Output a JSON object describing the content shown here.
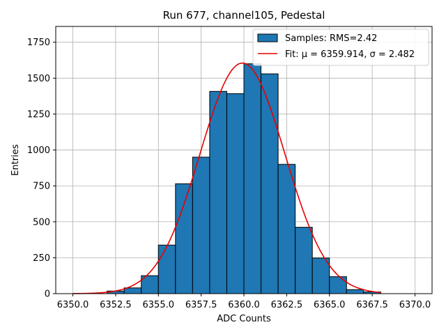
{
  "chart_data": {
    "type": "bar",
    "title": "Run 677, channel105, Pedestal",
    "xlabel": "ADC Counts",
    "ylabel": "Entries",
    "xlim": [
      6349.0,
      6371.0
    ],
    "ylim": [
      0,
      1860
    ],
    "xticks": [
      6350.0,
      6352.5,
      6355.0,
      6357.5,
      6360.0,
      6362.5,
      6365.0,
      6367.5,
      6370.0
    ],
    "xtick_labels": [
      "6350.0",
      "6352.5",
      "6355.0",
      "6357.5",
      "6360.0",
      "6362.5",
      "6365.0",
      "6367.5",
      "6370.0"
    ],
    "yticks": [
      0,
      250,
      500,
      750,
      1000,
      1250,
      1500,
      1750
    ],
    "ytick_labels": [
      "0",
      "250",
      "500",
      "750",
      "1000",
      "1250",
      "1500",
      "1750"
    ],
    "grid": true,
    "legend_position": "top-right",
    "series": [
      {
        "name": "Samples: RMS=2.42",
        "kind": "histogram",
        "color": "#1f77b4",
        "edgecolor": "#000000",
        "bin_edges": [
          6352,
          6353,
          6354,
          6355,
          6356,
          6357,
          6358,
          6359,
          6360,
          6361,
          6362,
          6363,
          6364,
          6365,
          6366,
          6367,
          6368
        ],
        "counts": [
          18,
          40,
          125,
          338,
          765,
          950,
          1408,
          1392,
          1600,
          1530,
          900,
          462,
          248,
          118,
          28,
          12
        ]
      },
      {
        "name": "Fit: μ = 6359.914, σ = 2.482",
        "kind": "gaussian",
        "color": "#e60000",
        "mu": 6359.914,
        "sigma": 2.482,
        "amplitude": 1605,
        "x_range": [
          6350.0,
          6368.0
        ]
      }
    ]
  }
}
